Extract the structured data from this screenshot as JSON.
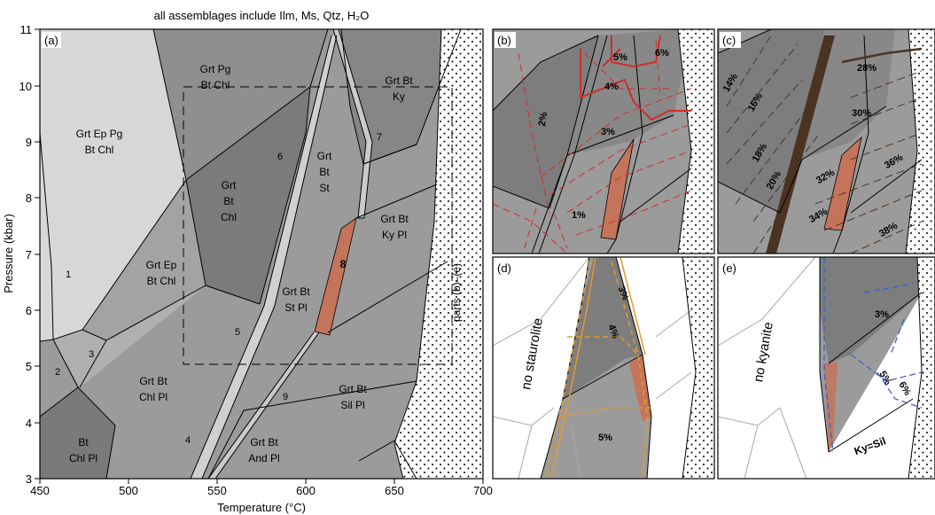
{
  "header": {
    "assemblage_note": "all assemblages include Ilm, Ms, Qtz, H₂O"
  },
  "axes": {
    "x_label": "Temperature (°C)",
    "y_label": "Pressure (kbar)",
    "x_ticks": [
      "450",
      "500",
      "550",
      "600",
      "650",
      "700"
    ],
    "y_ticks": [
      "3",
      "4",
      "5",
      "6",
      "7",
      "8",
      "9",
      "10",
      "11"
    ]
  },
  "panels": {
    "a": {
      "label": "(a)",
      "fields": [
        "Grt Ep Pg",
        "Bt Chl",
        "Grt Pg",
        "Bt Chl",
        "Grt Bt",
        "Ky",
        "Grt",
        "Bt",
        "Chl",
        "Grt",
        "Bt",
        "St",
        "Grt Ep",
        "Bt Chl",
        "Grt Bt",
        "Ky Pl",
        "Grt Bt",
        "St Pl",
        "Grt Bt",
        "Chl Pl",
        "Grt Bt",
        "Sil Pl",
        "Grt Bt",
        "And Pl",
        "Bt",
        "Chl Pl"
      ],
      "numbers": [
        "1",
        "2",
        "3",
        "4",
        "5",
        "6",
        "7",
        "8",
        "9"
      ],
      "inset_label": "parts (b)–(e)"
    },
    "b": {
      "label": "(b)",
      "contours": [
        "2%",
        "5%",
        "6%",
        "4%",
        "3%",
        "1%"
      ]
    },
    "c": {
      "label": "(c)",
      "contours": [
        "14%",
        "16%",
        "28%",
        "30%",
        "18%",
        "20%",
        "32%",
        "36%",
        "34%",
        "38%"
      ]
    },
    "d": {
      "label": "(d)",
      "note": "no staurolite",
      "contours": [
        "3%",
        "4%",
        "5%"
      ]
    },
    "e": {
      "label": "(e)",
      "note": "no kyanite",
      "contours": [
        "3%",
        "5%",
        "6%"
      ],
      "reaction": "Ky=Sil"
    }
  },
  "colors": {
    "light_field": "#d7d7d7",
    "mid_field": "#9b9b9b",
    "dark_field": "#7d7d7d",
    "staurolite_band": "#c4745a",
    "red_contour": "#d42b2b",
    "brown_contour": "#4a3322",
    "orange_contour": "#e39a2a",
    "blue_contour": "#3a5fcd"
  }
}
